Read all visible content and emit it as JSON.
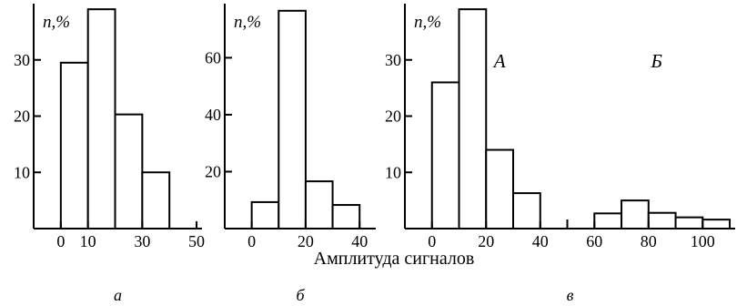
{
  "xlabel": "Амплитуда сигналов",
  "chart_data": [
    {
      "type": "bar",
      "panel_label": "а",
      "ylabel": "n,%",
      "xlim": [
        -10,
        52
      ],
      "ylim": [
        0,
        40
      ],
      "xticks": [
        0,
        10,
        30,
        50
      ],
      "yticks": [
        10,
        20,
        30
      ],
      "bins": [
        {
          "x0": 0,
          "x1": 10,
          "value": 29.5
        },
        {
          "x0": 10,
          "x1": 20,
          "value": 39
        },
        {
          "x0": 20,
          "x1": 30,
          "value": 20.3
        },
        {
          "x0": 30,
          "x1": 40,
          "value": 10
        }
      ]
    },
    {
      "type": "bar",
      "panel_label": "б",
      "ylabel": "n,%",
      "xlim": [
        -10,
        46
      ],
      "ylim": [
        0,
        79
      ],
      "xticks": [
        0,
        20,
        40
      ],
      "yticks": [
        20,
        40,
        60
      ],
      "bins": [
        {
          "x0": 0,
          "x1": 10,
          "value": 9.3
        },
        {
          "x0": 10,
          "x1": 20,
          "value": 76.5
        },
        {
          "x0": 20,
          "x1": 30,
          "value": 16.6
        },
        {
          "x0": 30,
          "x1": 40,
          "value": 8.3
        }
      ]
    },
    {
      "type": "bar",
      "panel_label": "в",
      "ylabel": "n,%",
      "xlim": [
        -10,
        112
      ],
      "ylim": [
        0,
        40
      ],
      "xticks": [
        0,
        20,
        40,
        60,
        80,
        100
      ],
      "yticks": [
        10,
        20,
        30
      ],
      "annotations": [
        {
          "text": "А",
          "x": 25,
          "y": 30
        },
        {
          "text": "Б",
          "x": 83,
          "y": 30
        }
      ],
      "bins": [
        {
          "x0": 0,
          "x1": 10,
          "value": 26
        },
        {
          "x0": 10,
          "x1": 20,
          "value": 39
        },
        {
          "x0": 20,
          "x1": 30,
          "value": 14
        },
        {
          "x0": 30,
          "x1": 40,
          "value": 6.3
        },
        {
          "x0": 60,
          "x1": 70,
          "value": 2.7
        },
        {
          "x0": 70,
          "x1": 80,
          "value": 5
        },
        {
          "x0": 80,
          "x1": 90,
          "value": 2.8
        },
        {
          "x0": 90,
          "x1": 100,
          "value": 2
        },
        {
          "x0": 100,
          "x1": 110,
          "value": 1.6
        }
      ],
      "break_mark_x": 50
    }
  ]
}
